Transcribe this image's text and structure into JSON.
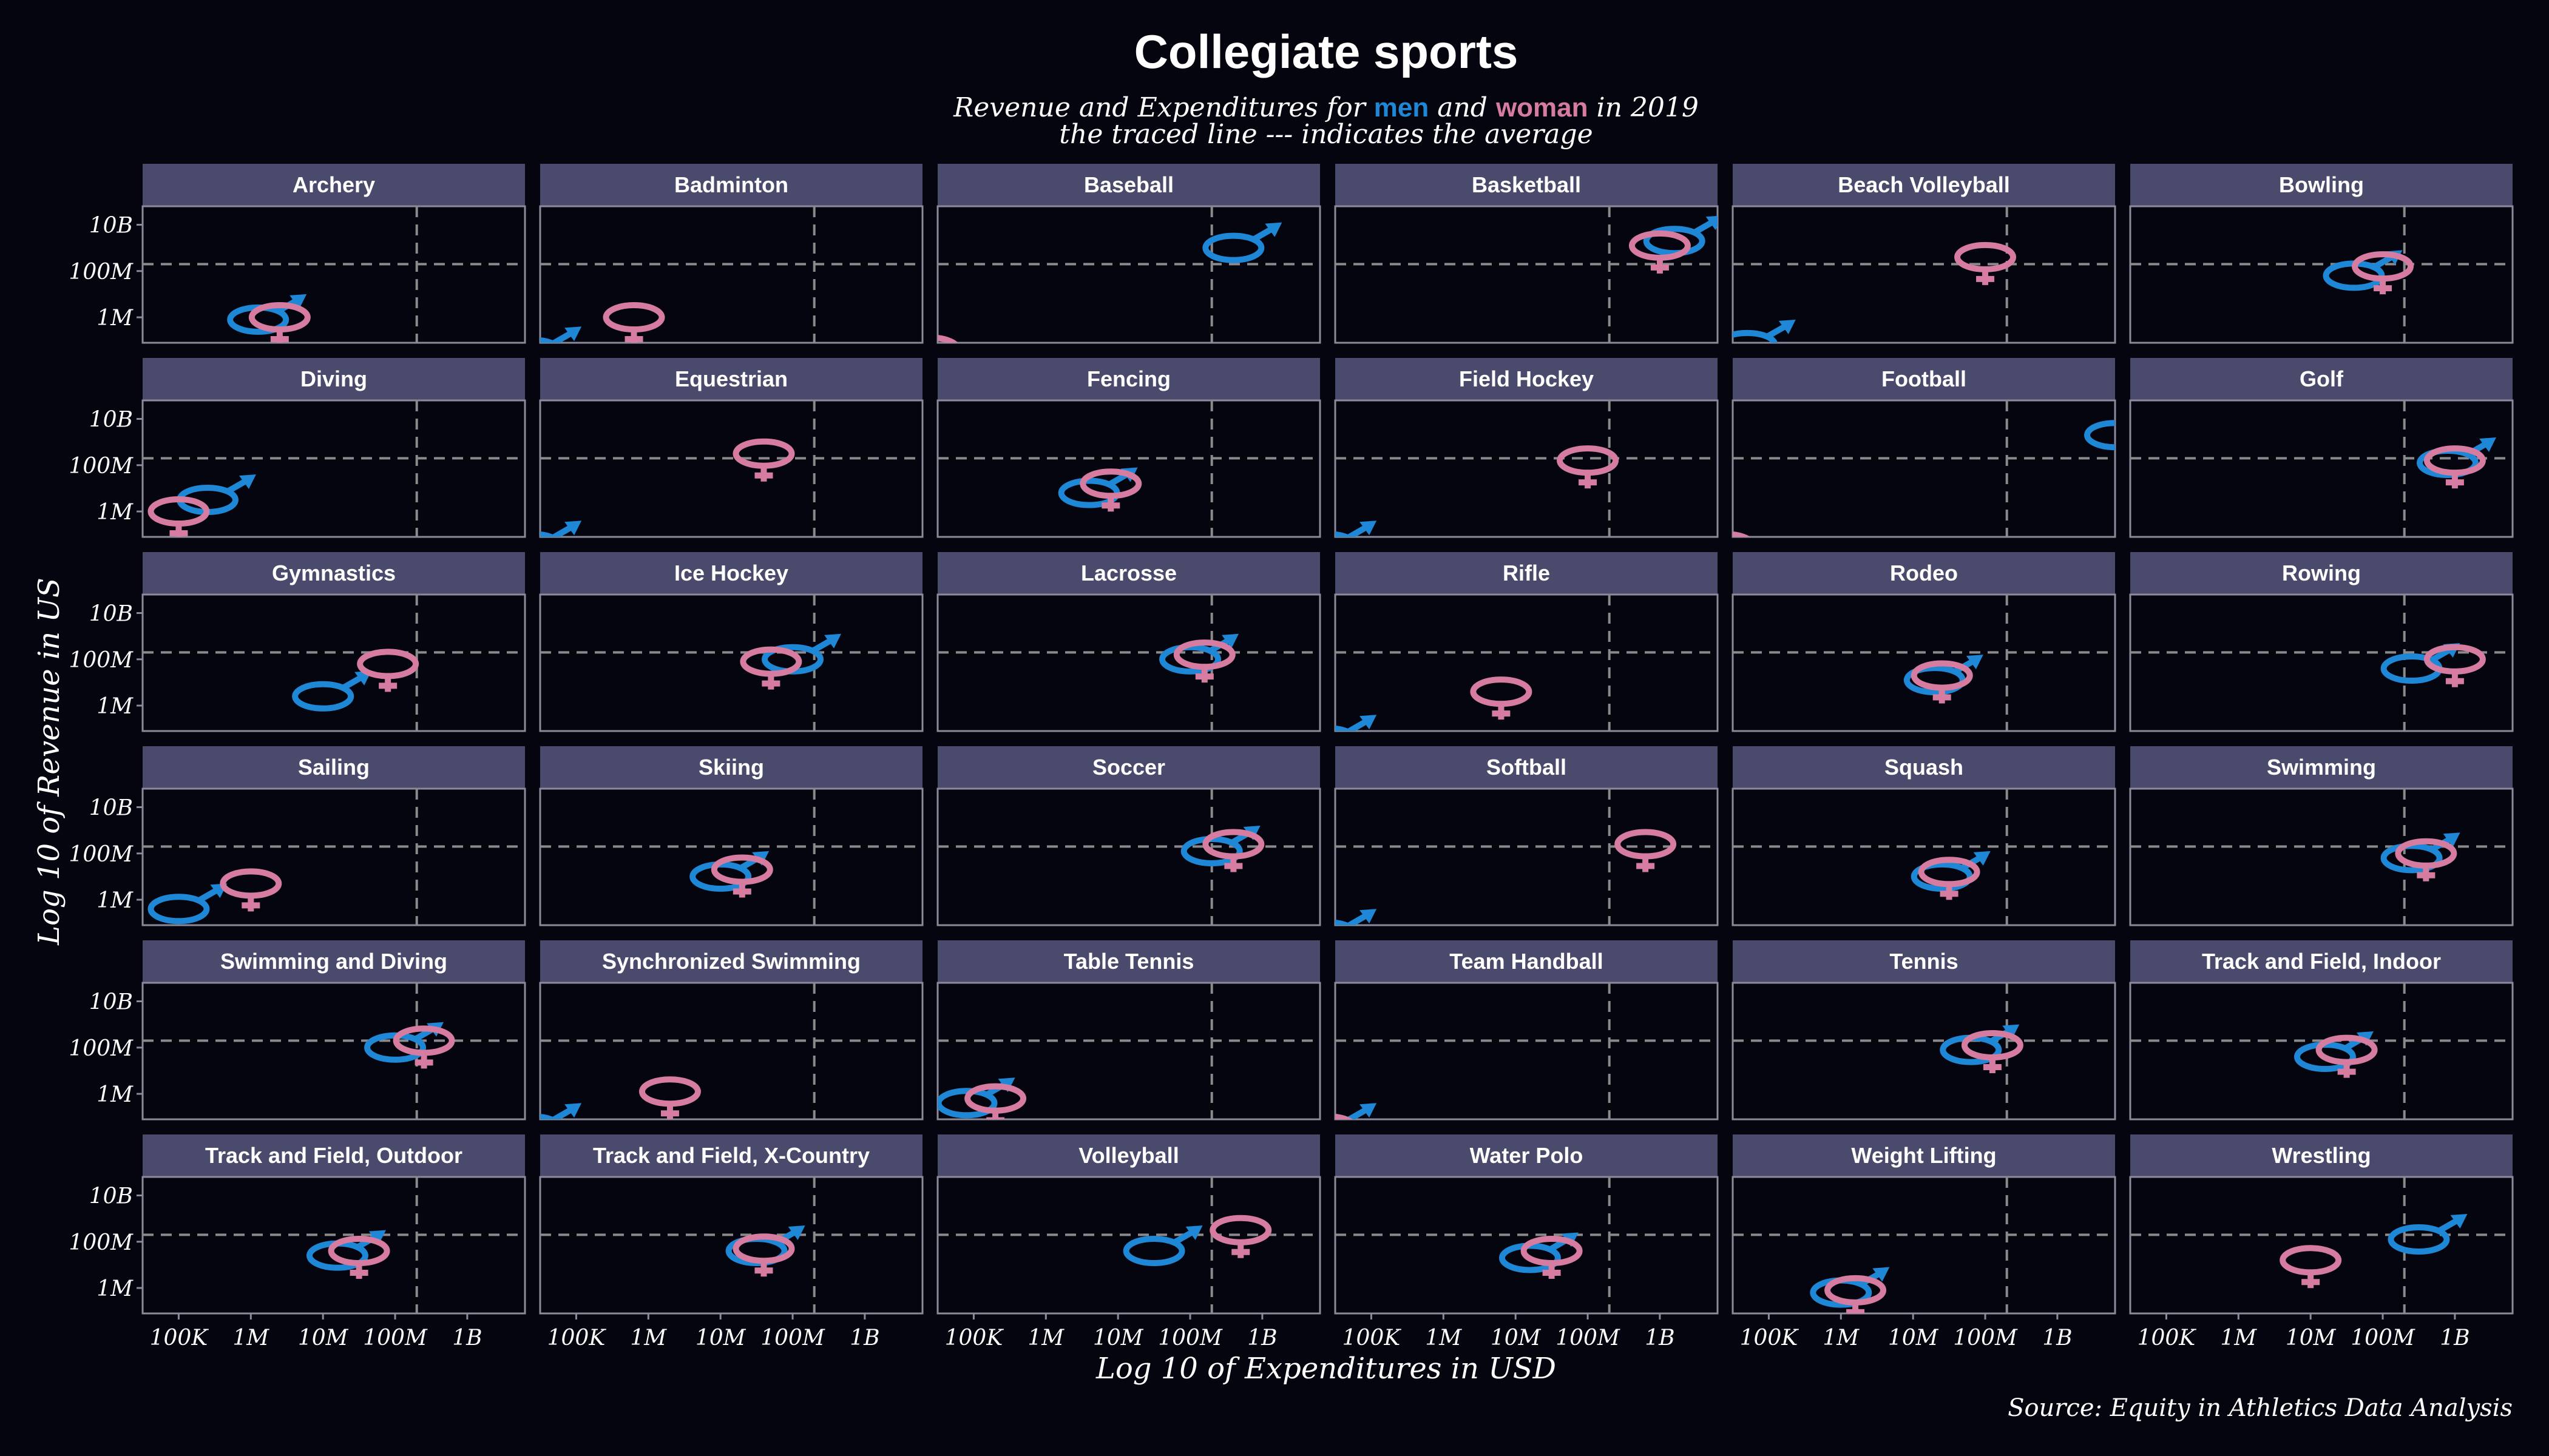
{
  "title": "Collegiate sports",
  "subtitle": {
    "line1_prefix": "Revenue and Expenditures for ",
    "men_word": "men",
    "and_word": " and ",
    "women_word": "woman",
    "line1_suffix": " in 2019",
    "line2": "the traced line --- indicates the average"
  },
  "source": "Source:  Equity in Athletics Data Analysis",
  "colors": {
    "background": "#05050f",
    "strip": "#4a4a6d",
    "panel_border": "#8a8a9a",
    "men": "#1f88d6",
    "women": "#d67ca0",
    "avg_line": "#8a8a8a",
    "text": "#ffffff"
  },
  "icons": {
    "men": "male-symbol-icon",
    "women": "female-symbol-icon"
  },
  "chart_data": {
    "type": "scatter",
    "facet_by": "sport",
    "layout": "6x6 grid of facets",
    "xlabel": "Log 10 of Expenditures in USD",
    "ylabel": "Log 10 of Revenue in US",
    "xscale": "log10",
    "yscale": "log10",
    "xlim_log10": [
      4.5,
      9.8
    ],
    "ylim_log10": [
      4.9,
      10.8
    ],
    "x_ticks": [
      {
        "log10": 5,
        "label": "100K"
      },
      {
        "log10": 6,
        "label": "1M"
      },
      {
        "log10": 7,
        "label": "10M"
      },
      {
        "log10": 8,
        "label": "100M"
      },
      {
        "log10": 9,
        "label": "1B"
      }
    ],
    "y_ticks": [
      {
        "log10": 6,
        "label": "1M"
      },
      {
        "log10": 8,
        "label": "100M"
      },
      {
        "log10": 10,
        "label": "10B"
      }
    ],
    "average_log10": {
      "x": 8.3,
      "y": 8.3
    },
    "series": [
      {
        "name": "men"
      },
      {
        "name": "woman"
      }
    ],
    "facets": [
      {
        "sport": "Archery",
        "men": [
          6.1,
          5.9
        ],
        "women": [
          6.4,
          6.0
        ]
      },
      {
        "sport": "Badminton",
        "men": [
          4.4,
          4.5
        ],
        "women": [
          5.8,
          6.0
        ]
      },
      {
        "sport": "Baseball",
        "men": [
          8.6,
          9.0
        ],
        "women": [
          4.4,
          4.6
        ]
      },
      {
        "sport": "Basketball",
        "men": [
          9.2,
          9.3
        ],
        "women": [
          9.0,
          9.1
        ]
      },
      {
        "sport": "Beach Volleyball",
        "men": [
          4.7,
          4.8
        ],
        "women": [
          8.0,
          8.6
        ]
      },
      {
        "sport": "Bowling",
        "men": [
          7.6,
          7.8
        ],
        "women": [
          8.0,
          8.2
        ]
      },
      {
        "sport": "Diving",
        "men": [
          5.4,
          6.5
        ],
        "women": [
          5.0,
          6.0
        ]
      },
      {
        "sport": "Equestrian",
        "men": [
          4.4,
          4.5
        ],
        "women": [
          7.6,
          8.5
        ]
      },
      {
        "sport": "Fencing",
        "men": [
          6.6,
          6.8
        ],
        "women": [
          6.9,
          7.2
        ]
      },
      {
        "sport": "Field Hockey",
        "men": [
          4.4,
          4.5
        ],
        "women": [
          8.0,
          8.2
        ]
      },
      {
        "sport": "Football",
        "men": [
          9.8,
          9.3
        ],
        "women": [
          4.4,
          4.5
        ]
      },
      {
        "sport": "Golf",
        "men": [
          8.9,
          8.1
        ],
        "women": [
          9.0,
          8.2
        ]
      },
      {
        "sport": "Gymnastics",
        "men": [
          7.0,
          6.4
        ],
        "women": [
          7.9,
          7.8
        ]
      },
      {
        "sport": "Ice Hockey",
        "men": [
          8.0,
          8.0
        ],
        "women": [
          7.7,
          7.9
        ]
      },
      {
        "sport": "Lacrosse",
        "men": [
          8.0,
          8.0
        ],
        "women": [
          8.2,
          8.2
        ]
      },
      {
        "sport": "Rifle",
        "men": [
          4.4,
          4.5
        ],
        "women": [
          6.8,
          6.6
        ]
      },
      {
        "sport": "Rodeo",
        "men": [
          7.3,
          7.1
        ],
        "women": [
          7.4,
          7.3
        ]
      },
      {
        "sport": "Rowing",
        "men": [
          8.4,
          7.6
        ],
        "women": [
          9.0,
          8.0
        ]
      },
      {
        "sport": "Sailing",
        "men": [
          5.0,
          5.6
        ],
        "women": [
          6.0,
          6.7
        ]
      },
      {
        "sport": "Skiing",
        "men": [
          7.0,
          7.0
        ],
        "women": [
          7.3,
          7.3
        ]
      },
      {
        "sport": "Soccer",
        "men": [
          8.3,
          8.1
        ],
        "women": [
          8.6,
          8.4
        ]
      },
      {
        "sport": "Softball",
        "men": [
          4.4,
          4.5
        ],
        "women": [
          8.8,
          8.4
        ]
      },
      {
        "sport": "Squash",
        "men": [
          7.4,
          7.0
        ],
        "women": [
          7.5,
          7.2
        ]
      },
      {
        "sport": "Swimming",
        "men": [
          8.4,
          7.8
        ],
        "women": [
          8.6,
          8.0
        ]
      },
      {
        "sport": "Swimming and Diving",
        "men": [
          8.0,
          8.0
        ],
        "women": [
          8.4,
          8.3
        ]
      },
      {
        "sport": "Synchronized Swimming",
        "men": [
          4.4,
          4.5
        ],
        "women": [
          6.3,
          6.1
        ]
      },
      {
        "sport": "Table Tennis",
        "men": [
          4.9,
          5.6
        ],
        "women": [
          5.3,
          5.8
        ]
      },
      {
        "sport": "Team Handball",
        "men": [
          4.4,
          4.5
        ],
        "women": [
          4.4,
          4.5
        ]
      },
      {
        "sport": "Tennis",
        "men": [
          7.8,
          7.9
        ],
        "women": [
          8.1,
          8.1
        ]
      },
      {
        "sport": "Track and Field, Indoor",
        "men": [
          7.2,
          7.6
        ],
        "women": [
          7.5,
          7.9
        ]
      },
      {
        "sport": "Track and Field, Outdoor",
        "men": [
          7.2,
          7.4
        ],
        "women": [
          7.5,
          7.6
        ]
      },
      {
        "sport": "Track and Field, X-Country",
        "men": [
          7.5,
          7.6
        ],
        "women": [
          7.6,
          7.7
        ]
      },
      {
        "sport": "Volleyball",
        "men": [
          7.5,
          7.6
        ],
        "women": [
          8.7,
          8.5
        ]
      },
      {
        "sport": "Water Polo",
        "men": [
          7.2,
          7.3
        ],
        "women": [
          7.5,
          7.6
        ]
      },
      {
        "sport": "Weight Lifting",
        "men": [
          6.0,
          5.8
        ],
        "women": [
          6.2,
          5.9
        ]
      },
      {
        "sport": "Wrestling",
        "men": [
          8.5,
          8.1
        ],
        "women": [
          7.0,
          7.2
        ]
      }
    ]
  }
}
